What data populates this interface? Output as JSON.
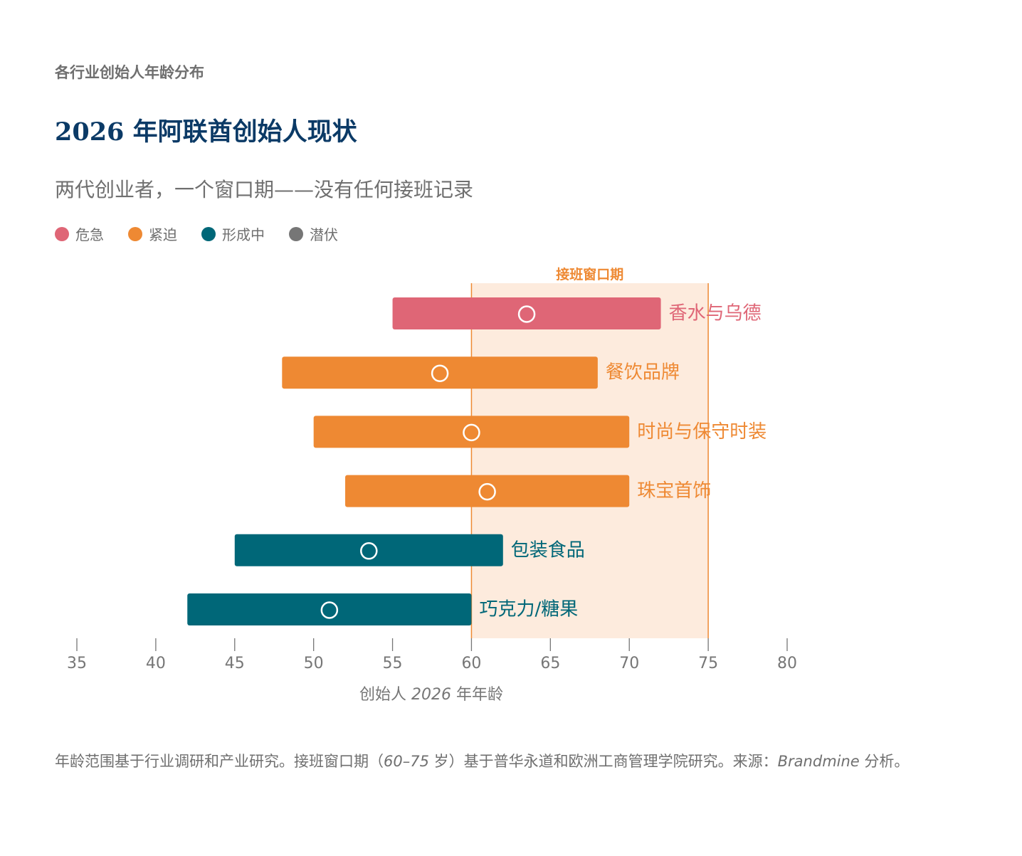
{
  "header": {
    "eyebrow": "各行业创始人年龄分布",
    "title": "2026 年阿联酋创始人现状",
    "subtitle": "两代创业者，一个窗口期——没有任何接班记录"
  },
  "legend": [
    {
      "label": "危急",
      "color": "#df6676"
    },
    {
      "label": "紧迫",
      "color": "#ee8933"
    },
    {
      "label": "形成中",
      "color": "#006778"
    },
    {
      "label": "潜伏",
      "color": "#767676"
    }
  ],
  "chart_data": {
    "type": "range-bar",
    "xlabel_prefix": "创始人",
    "xlabel_year": "2026",
    "xlabel_suffix": "年年龄",
    "xlim": [
      35,
      80
    ],
    "xticks": [
      35,
      40,
      45,
      50,
      55,
      60,
      65,
      70,
      75,
      80
    ],
    "succession_window": {
      "label": "接班窗口期",
      "start": 60,
      "end": 75
    },
    "series": [
      {
        "category": "香水与乌德",
        "status": "危急",
        "min": 55,
        "max": 72,
        "marker": 63.5,
        "color": "#df6676"
      },
      {
        "category": "餐饮品牌",
        "status": "紧迫",
        "min": 48,
        "max": 68,
        "marker": 58,
        "color": "#ee8933"
      },
      {
        "category": "时尚与保守时装",
        "status": "紧迫",
        "min": 50,
        "max": 70,
        "marker": 60,
        "color": "#ee8933"
      },
      {
        "category": "珠宝首饰",
        "status": "紧迫",
        "min": 52,
        "max": 70,
        "marker": 61,
        "color": "#ee8933"
      },
      {
        "category": "包装食品",
        "status": "形成中",
        "min": 45,
        "max": 62,
        "marker": 53.5,
        "color": "#006778"
      },
      {
        "category": "巧克力/糖果",
        "status": "形成中",
        "min": 42,
        "max": 60,
        "marker": 51,
        "color": "#006778"
      }
    ],
    "window_color": "#ee8933",
    "axis_color": "#767676"
  },
  "footnote": {
    "part1": "年龄范围基于行业调研和产业研究。接班窗口期（",
    "range": "60–75",
    "part2": " 岁）基于普华永道和欧洲工商管理学院研究。来源：",
    "source": "Brandmine",
    "part3": " 分析。"
  }
}
